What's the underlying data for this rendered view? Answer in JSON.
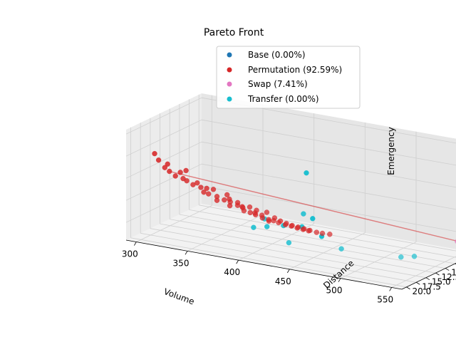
{
  "chart_data": {
    "type": "scatter3d",
    "title": "Pareto Front",
    "xlabel": "Volume",
    "ylabel": "Distance",
    "zlabel": "Emergency",
    "xlim": [
      290,
      560
    ],
    "ylim": [
      1.8,
      21.2
    ],
    "zlim": [
      0.432,
      0.482
    ],
    "xticks": [
      "300",
      "350",
      "400",
      "450",
      "500",
      "550"
    ],
    "yticks": [
      "2.5",
      "5.0",
      "7.5",
      "10.0",
      "12.5",
      "15.0",
      "17.5",
      "20.0"
    ],
    "zticks": [
      "0.44",
      "0.45",
      "0.46",
      "0.47",
      "0.48"
    ],
    "grid": true,
    "legend_position": "top-right",
    "legend": [
      {
        "label": "Base (0.00%)",
        "color": "#1f77b4"
      },
      {
        "label": "Permutation (92.59%)",
        "color": "#d62728"
      },
      {
        "label": "Swap (7.41%)",
        "color": "#e377c2"
      },
      {
        "label": "Transfer (0.00%)",
        "color": "#17becf"
      }
    ],
    "series": [
      {
        "name": "Base (0.00%)",
        "color": "#1f77b4",
        "points": [
          [
            548,
            3.2,
            0.4375
          ]
        ]
      },
      {
        "name": "Permutation (92.59%)",
        "color": "#d62728",
        "points": [
          [
            300,
            16.5,
            0.468
          ],
          [
            302,
            16.0,
            0.4648
          ],
          [
            305,
            15.2,
            0.461
          ],
          [
            308,
            14.8,
            0.4592
          ],
          [
            312,
            14.3,
            0.457
          ],
          [
            316,
            14.1,
            0.4588
          ],
          [
            318,
            13.9,
            0.456
          ],
          [
            320,
            13.5,
            0.4548
          ],
          [
            322,
            14.2,
            0.4602
          ],
          [
            325,
            13.2,
            0.4532
          ],
          [
            328,
            12.9,
            0.454
          ],
          [
            330,
            12.5,
            0.4518
          ],
          [
            334,
            12.8,
            0.4502
          ],
          [
            336,
            12.1,
            0.449
          ],
          [
            340,
            11.9,
            0.4512
          ],
          [
            342,
            11.5,
            0.4478
          ],
          [
            345,
            12.3,
            0.447
          ],
          [
            348,
            11.2,
            0.4465
          ],
          [
            350,
            11.0,
            0.4488
          ],
          [
            352,
            10.7,
            0.4455
          ],
          [
            355,
            11.6,
            0.4448
          ],
          [
            358,
            10.4,
            0.4442
          ],
          [
            360,
            10.9,
            0.446
          ],
          [
            362,
            10.1,
            0.4432
          ],
          [
            365,
            10.6,
            0.4425
          ],
          [
            368,
            9.9,
            0.4438
          ],
          [
            370,
            10.3,
            0.4418
          ],
          [
            372,
            9.6,
            0.4412
          ],
          [
            375,
            10.0,
            0.443
          ],
          [
            378,
            9.4,
            0.4405
          ],
          [
            380,
            9.8,
            0.4398
          ],
          [
            382,
            9.2,
            0.442
          ],
          [
            385,
            9.5,
            0.4392
          ],
          [
            388,
            9.0,
            0.4385
          ],
          [
            390,
            9.3,
            0.4402
          ],
          [
            392,
            8.8,
            0.4378
          ],
          [
            395,
            9.1,
            0.439
          ],
          [
            398,
            8.6,
            0.4372
          ],
          [
            400,
            8.9,
            0.4382
          ],
          [
            403,
            8.4,
            0.4368
          ],
          [
            405,
            8.7,
            0.4375
          ],
          [
            408,
            8.2,
            0.4362
          ],
          [
            410,
            8.5,
            0.437
          ],
          [
            413,
            8.0,
            0.4358
          ],
          [
            415,
            8.3,
            0.4365
          ],
          [
            418,
            7.9,
            0.4355
          ],
          [
            420,
            8.1,
            0.436
          ],
          [
            425,
            7.7,
            0.4352
          ],
          [
            430,
            7.5,
            0.435
          ],
          [
            436,
            7.2,
            0.4348
          ],
          [
            310,
            15.8,
            0.4635
          ],
          [
            338,
            13.1,
            0.4525
          ],
          [
            356,
            12.0,
            0.4482
          ],
          [
            366,
            11.3,
            0.445
          ],
          [
            376,
            10.5,
            0.4415
          ],
          [
            386,
            9.7,
            0.4388
          ]
        ]
      },
      {
        "name": "Swap (7.41%)",
        "color": "#e377c2",
        "points": [
          [
            545,
            3.0,
            0.437
          ],
          [
            547,
            3.3,
            0.4372
          ]
        ]
      },
      {
        "name": "Transfer (0.00%)",
        "color": "#17becf",
        "points": [
          [
            395,
            16.0,
            0.442
          ],
          [
            410,
            16.5,
            0.444
          ],
          [
            430,
            17.5,
            0.447
          ],
          [
            450,
            18.0,
            0.4485
          ],
          [
            460,
            19.5,
            0.475
          ],
          [
            470,
            20.5,
            0.456
          ],
          [
            480,
            20.8,
            0.449
          ],
          [
            420,
            13.5,
            0.435
          ],
          [
            460,
            10.5,
            0.433
          ],
          [
            505,
            7.0,
            0.43
          ],
          [
            520,
            7.5,
            0.432
          ],
          [
            400,
            14.5,
            0.445
          ],
          [
            440,
            15.0,
            0.451
          ]
        ]
      }
    ]
  }
}
